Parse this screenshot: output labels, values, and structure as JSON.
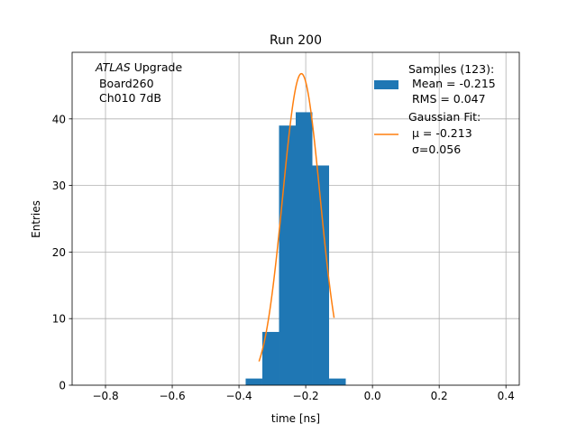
{
  "chart_data": {
    "type": "bar",
    "title": "Run 200",
    "xlabel": "time [ns]",
    "ylabel": "Entries",
    "xlim": [
      -0.9,
      0.44
    ],
    "ylim": [
      0,
      50
    ],
    "grid": true,
    "x_ticks": [
      -0.8,
      -0.6,
      -0.4,
      -0.2,
      0.0,
      0.2,
      0.4
    ],
    "x_tick_labels": [
      "−0.8",
      "−0.6",
      "−0.4",
      "−0.2",
      "0.0",
      "0.2",
      "0.4"
    ],
    "y_ticks": [
      0,
      10,
      20,
      30,
      40
    ],
    "y_tick_labels": [
      "0",
      "10",
      "20",
      "30",
      "40"
    ],
    "histogram": {
      "name": "Samples",
      "color": "#1f77b4",
      "bins": [
        {
          "x0": -0.38,
          "x1": -0.33,
          "count": 1
        },
        {
          "x0": -0.33,
          "x1": -0.28,
          "count": 8
        },
        {
          "x0": -0.28,
          "x1": -0.23,
          "count": 39
        },
        {
          "x0": -0.23,
          "x1": -0.18,
          "count": 41
        },
        {
          "x0": -0.18,
          "x1": -0.13,
          "count": 33
        },
        {
          "x0": -0.13,
          "x1": -0.08,
          "count": 1
        }
      ]
    },
    "fit": {
      "name": "Gaussian Fit",
      "color": "#ff7f0e",
      "mu": -0.213,
      "sigma": 0.056,
      "amplitude": 46.8,
      "x_range": [
        -0.34,
        -0.115
      ]
    },
    "annotation": {
      "italic_part": "ATLAS",
      "line1_rest": " Upgrade",
      "line2": " Board260",
      "line3": " Ch010 7dB"
    },
    "legend": {
      "position": "top-right",
      "entries": [
        {
          "kind": "patch",
          "color": "#1f77b4",
          "lines": [
            "Samples (123):",
            " Mean = -0.215",
            " RMS = 0.047"
          ]
        },
        {
          "kind": "line",
          "color": "#ff7f0e",
          "lines": [
            "Gaussian Fit:",
            " μ = -0.213",
            " σ=0.056"
          ]
        }
      ]
    }
  }
}
